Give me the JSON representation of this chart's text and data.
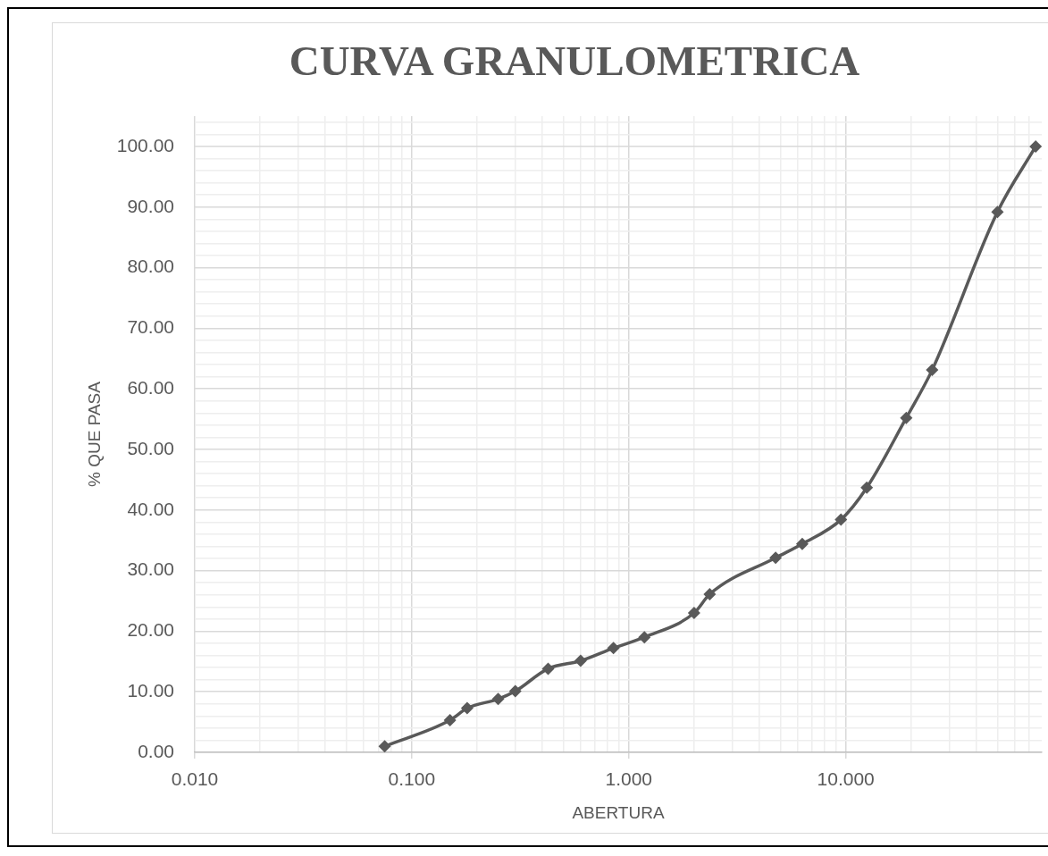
{
  "chart_data": {
    "type": "line",
    "title": "CURVA GRANULOMETRICA",
    "xlabel": "ABERTURA",
    "ylabel": "% QUE PASA",
    "x": [
      0.075,
      0.15,
      0.18,
      0.25,
      0.3,
      0.425,
      0.6,
      0.85,
      1.18,
      2,
      2.36,
      4.75,
      6.3,
      9.5,
      12.5,
      19,
      25,
      50,
      75
    ],
    "values": [
      1.0,
      5.3,
      7.3,
      8.8,
      10.1,
      13.8,
      15.1,
      17.2,
      19.0,
      23.0,
      26.1,
      32.1,
      34.4,
      38.4,
      43.7,
      55.2,
      63.1,
      89.2,
      100.0
    ],
    "color": "#595959",
    "marker": "diamond",
    "log": "x",
    "grid": true,
    "xlim": [
      0.01,
      80
    ],
    "xticks": [
      {
        "value": 0.01,
        "label": "0.010"
      },
      {
        "value": 0.02,
        "label": null
      },
      {
        "value": 0.03,
        "label": null
      },
      {
        "value": 0.04,
        "label": null
      },
      {
        "value": 0.05,
        "label": null
      },
      {
        "value": 0.06,
        "label": null
      },
      {
        "value": 0.07,
        "label": null
      },
      {
        "value": 0.08,
        "label": null
      },
      {
        "value": 0.09,
        "label": null
      },
      {
        "value": 0.1,
        "label": "0.100"
      },
      {
        "value": 0.2,
        "label": null
      },
      {
        "value": 0.3,
        "label": null
      },
      {
        "value": 0.4,
        "label": null
      },
      {
        "value": 0.5,
        "label": null
      },
      {
        "value": 0.6,
        "label": null
      },
      {
        "value": 0.7,
        "label": null
      },
      {
        "value": 0.8,
        "label": null
      },
      {
        "value": 0.9,
        "label": null
      },
      {
        "value": 1,
        "label": "1.000"
      },
      {
        "value": 2,
        "label": null
      },
      {
        "value": 3,
        "label": null
      },
      {
        "value": 4,
        "label": null
      },
      {
        "value": 5,
        "label": null
      },
      {
        "value": 6,
        "label": null
      },
      {
        "value": 7,
        "label": null
      },
      {
        "value": 8,
        "label": null
      },
      {
        "value": 9,
        "label": null
      },
      {
        "value": 10,
        "label": "10.000"
      },
      {
        "value": 20,
        "label": null
      },
      {
        "value": 30,
        "label": null
      },
      {
        "value": 40,
        "label": null
      },
      {
        "value": 50,
        "label": null
      },
      {
        "value": 60,
        "label": null
      },
      {
        "value": 70,
        "label": null
      }
    ],
    "ylim": [
      0,
      105
    ],
    "yticks": [
      {
        "value": 0,
        "label": "0.00"
      },
      {
        "value": 2,
        "label": null
      },
      {
        "value": 4,
        "label": null
      },
      {
        "value": 6,
        "label": null
      },
      {
        "value": 8,
        "label": null
      },
      {
        "value": 10,
        "label": "10.00"
      },
      {
        "value": 12,
        "label": null
      },
      {
        "value": 14,
        "label": null
      },
      {
        "value": 16,
        "label": null
      },
      {
        "value": 18,
        "label": null
      },
      {
        "value": 20,
        "label": "20.00"
      },
      {
        "value": 22,
        "label": null
      },
      {
        "value": 24,
        "label": null
      },
      {
        "value": 26,
        "label": null
      },
      {
        "value": 28,
        "label": null
      },
      {
        "value": 30,
        "label": "30.00"
      },
      {
        "value": 32,
        "label": null
      },
      {
        "value": 34,
        "label": null
      },
      {
        "value": 36,
        "label": null
      },
      {
        "value": 38,
        "label": null
      },
      {
        "value": 40,
        "label": "40.00"
      },
      {
        "value": 42,
        "label": null
      },
      {
        "value": 44,
        "label": null
      },
      {
        "value": 46,
        "label": null
      },
      {
        "value": 48,
        "label": null
      },
      {
        "value": 50,
        "label": "50.00"
      },
      {
        "value": 52,
        "label": null
      },
      {
        "value": 54,
        "label": null
      },
      {
        "value": 56,
        "label": null
      },
      {
        "value": 58,
        "label": null
      },
      {
        "value": 60,
        "label": "60.00"
      },
      {
        "value": 62,
        "label": null
      },
      {
        "value": 64,
        "label": null
      },
      {
        "value": 66,
        "label": null
      },
      {
        "value": 68,
        "label": null
      },
      {
        "value": 70,
        "label": "70.00"
      },
      {
        "value": 72,
        "label": null
      },
      {
        "value": 74,
        "label": null
      },
      {
        "value": 76,
        "label": null
      },
      {
        "value": 78,
        "label": null
      },
      {
        "value": 80,
        "label": "80.00"
      },
      {
        "value": 82,
        "label": null
      },
      {
        "value": 84,
        "label": null
      },
      {
        "value": 86,
        "label": null
      },
      {
        "value": 88,
        "label": null
      },
      {
        "value": 90,
        "label": "90.00"
      },
      {
        "value": 92,
        "label": null
      },
      {
        "value": 94,
        "label": null
      },
      {
        "value": 96,
        "label": null
      },
      {
        "value": 98,
        "label": null
      },
      {
        "value": 100,
        "label": "100.00"
      },
      {
        "value": 102,
        "label": null
      },
      {
        "value": 104,
        "label": null
      }
    ]
  }
}
